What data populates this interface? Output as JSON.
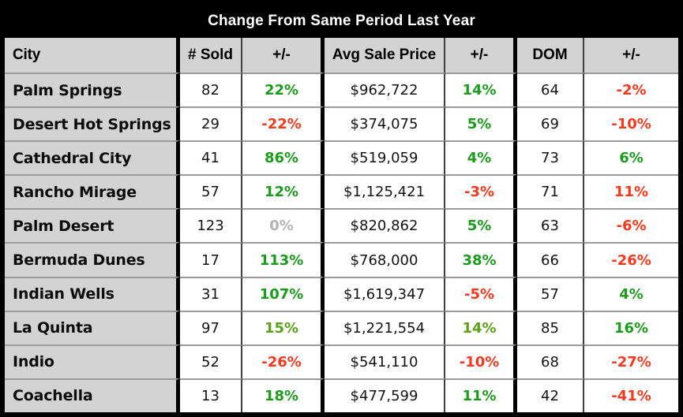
{
  "title": "Change From Same Period Last Year",
  "palette": {
    "positive": "#1d9b1d",
    "positive_alt": "#5da01c",
    "negative": "#f8391d",
    "neutral": "#b3b3b3",
    "header_bg": "#d3d3d3",
    "title_bg": "#000000",
    "title_text": "#ffffff",
    "grid_line_thin": "#3f3f3f",
    "row_line": "#9b9b9b"
  },
  "chart_data": {
    "type": "table",
    "title": "Change From Same Period Last Year",
    "columns": [
      "City",
      "# Sold",
      "+/-",
      "Avg Sale Price",
      "+/-",
      "DOM",
      "+/-"
    ],
    "rows": [
      {
        "city": "Palm Springs",
        "sold": "82",
        "sold_chg": "22%",
        "sold_chg_color": "positive",
        "price": "$962,722",
        "price_chg": "14%",
        "price_chg_color": "positive",
        "dom": "64",
        "dom_chg": "-2%",
        "dom_chg_color": "negative"
      },
      {
        "city": "Desert Hot Springs",
        "sold": "29",
        "sold_chg": "-22%",
        "sold_chg_color": "negative",
        "price": "$374,075",
        "price_chg": "5%",
        "price_chg_color": "positive",
        "dom": "69",
        "dom_chg": "-10%",
        "dom_chg_color": "negative"
      },
      {
        "city": "Cathedral City",
        "sold": "41",
        "sold_chg": "86%",
        "sold_chg_color": "positive",
        "price": "$519,059",
        "price_chg": "4%",
        "price_chg_color": "positive",
        "dom": "73",
        "dom_chg": "6%",
        "dom_chg_color": "positive"
      },
      {
        "city": "Rancho Mirage",
        "sold": "57",
        "sold_chg": "12%",
        "sold_chg_color": "positive",
        "price": "$1,125,421",
        "price_chg": "-3%",
        "price_chg_color": "negative",
        "dom": "71",
        "dom_chg": "11%",
        "dom_chg_color": "negative"
      },
      {
        "city": "Palm Desert",
        "sold": "123",
        "sold_chg": "0%",
        "sold_chg_color": "neutral",
        "price": "$820,862",
        "price_chg": "5%",
        "price_chg_color": "positive",
        "dom": "63",
        "dom_chg": "-6%",
        "dom_chg_color": "negative"
      },
      {
        "city": "Bermuda Dunes",
        "sold": "17",
        "sold_chg": "113%",
        "sold_chg_color": "positive",
        "price": "$768,000",
        "price_chg": "38%",
        "price_chg_color": "positive",
        "dom": "66",
        "dom_chg": "-26%",
        "dom_chg_color": "negative"
      },
      {
        "city": "Indian Wells",
        "sold": "31",
        "sold_chg": "107%",
        "sold_chg_color": "positive",
        "price": "$1,619,347",
        "price_chg": "-5%",
        "price_chg_color": "negative",
        "dom": "57",
        "dom_chg": "4%",
        "dom_chg_color": "positive"
      },
      {
        "city": "La Quinta",
        "sold": "97",
        "sold_chg": "15%",
        "sold_chg_color": "positive_alt",
        "price": "$1,221,554",
        "price_chg": "14%",
        "price_chg_color": "positive_alt",
        "dom": "85",
        "dom_chg": "16%",
        "dom_chg_color": "positive"
      },
      {
        "city": "Indio",
        "sold": "52",
        "sold_chg": "-26%",
        "sold_chg_color": "negative",
        "price": "$541,110",
        "price_chg": "-10%",
        "price_chg_color": "negative",
        "dom": "68",
        "dom_chg": "-27%",
        "dom_chg_color": "negative"
      },
      {
        "city": "Coachella",
        "sold": "13",
        "sold_chg": "18%",
        "sold_chg_color": "positive",
        "price": "$477,599",
        "price_chg": "11%",
        "price_chg_color": "positive",
        "dom": "42",
        "dom_chg": "-41%",
        "dom_chg_color": "negative"
      }
    ]
  }
}
